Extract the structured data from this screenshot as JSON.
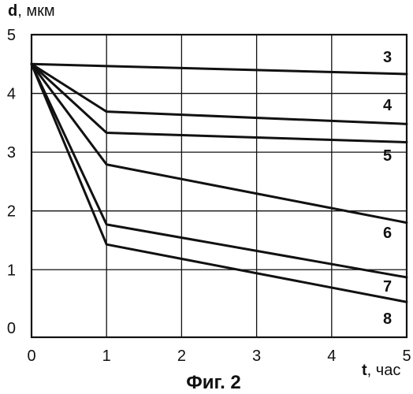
{
  "chart_data": {
    "type": "line",
    "y_axis_title": {
      "symbol": "d",
      "unit": ", мкм"
    },
    "x_axis_title": {
      "symbol": "t",
      "unit": ", час"
    },
    "caption": "Фиг. 2",
    "x_ticks": [
      "0",
      "1",
      "2",
      "3",
      "4",
      "5"
    ],
    "y_ticks": [
      "0",
      "1",
      "2",
      "3",
      "4",
      "5"
    ],
    "xlim": [
      0,
      5
    ],
    "ylim": [
      -0.15,
      5
    ],
    "grid": true,
    "series": [
      {
        "name": "3",
        "x": [
          0,
          5
        ],
        "y": [
          4.5,
          4.33
        ]
      },
      {
        "name": "4",
        "x": [
          0,
          1,
          5
        ],
        "y": [
          4.5,
          3.69,
          3.48
        ]
      },
      {
        "name": "5",
        "x": [
          0,
          1,
          5
        ],
        "y": [
          4.5,
          3.33,
          3.17
        ]
      },
      {
        "name": "6",
        "x": [
          0,
          1,
          5
        ],
        "y": [
          4.5,
          2.79,
          1.8
        ]
      },
      {
        "name": "7",
        "x": [
          0,
          1,
          5
        ],
        "y": [
          4.5,
          1.77,
          0.87
        ]
      },
      {
        "name": "8",
        "x": [
          0,
          1,
          5
        ],
        "y": [
          4.5,
          1.43,
          0.45
        ]
      }
    ]
  }
}
